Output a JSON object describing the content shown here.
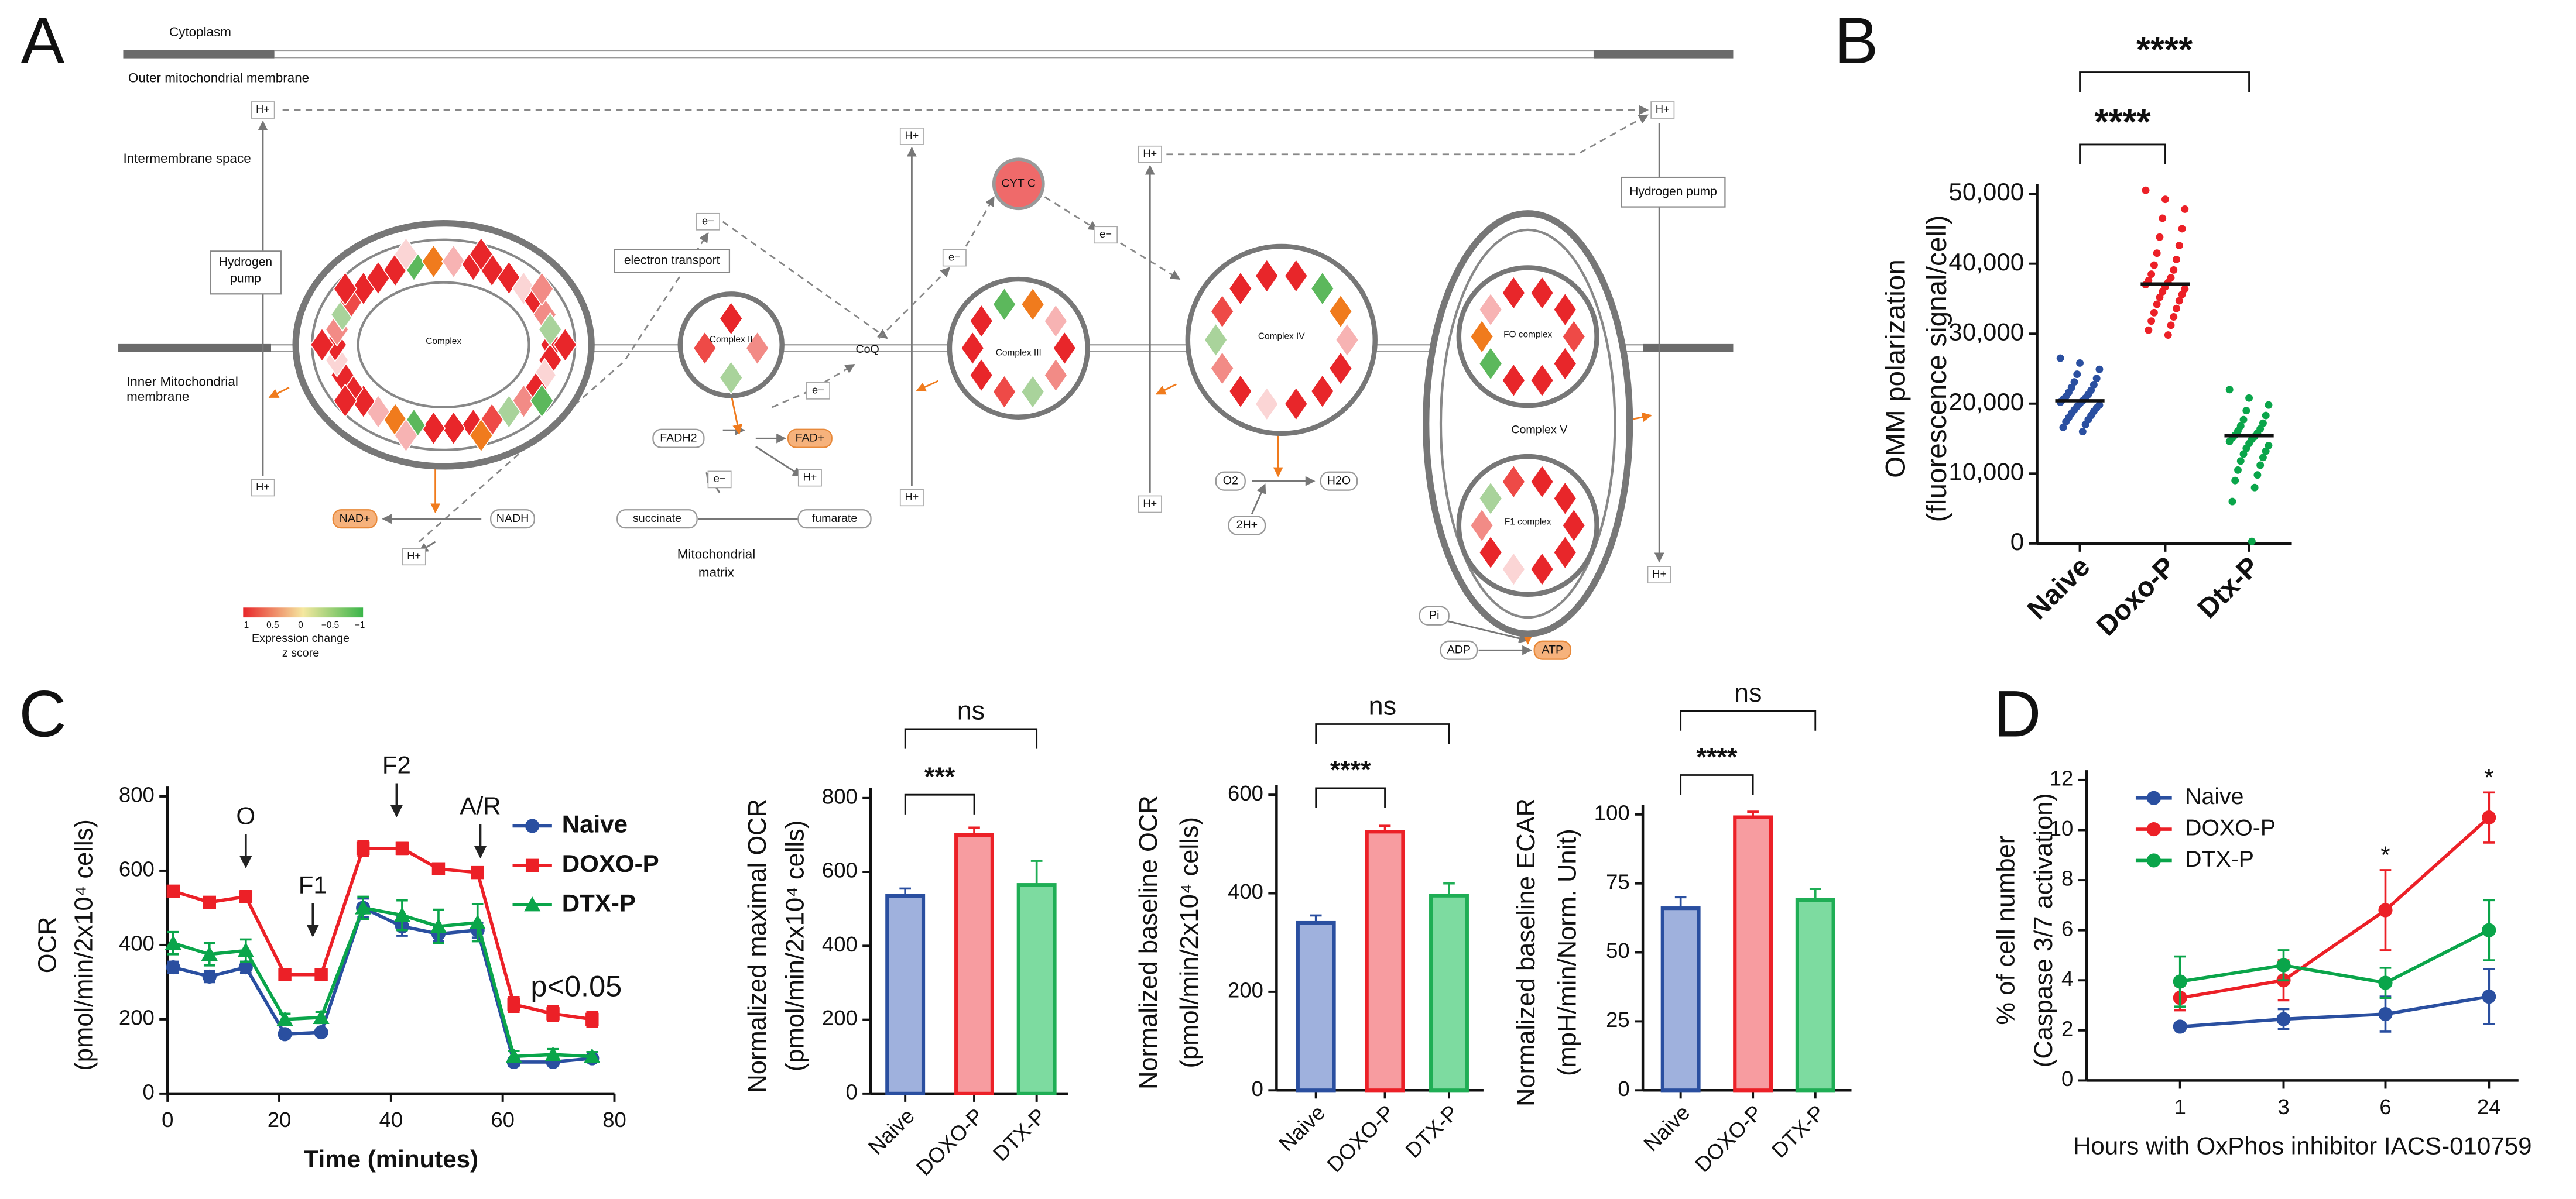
{
  "panel_labels": [
    "A",
    "B",
    "C",
    "D"
  ],
  "diagram": {
    "regions": [
      "Cytoplasm",
      "Outer mitochondrial membrane",
      "Intermembrane space",
      [
        "Inner Mitochondrial",
        "membrane"
      ],
      [
        "Mitochondrial",
        "matrix"
      ]
    ],
    "complexes": [
      "Complex",
      "Complex II",
      "Complex III",
      "Complex IV",
      "Complex V",
      "FO complex",
      "F1 complex"
    ],
    "boxes": [
      [
        "Hydrogen",
        "pump"
      ],
      [
        "electron transport"
      ],
      [
        "Hydrogen pump"
      ]
    ],
    "molecules": [
      "CoQ",
      "CYT C",
      "NAD+",
      "NADH",
      "FADH2",
      "FAD+",
      "succinate",
      "fumarate",
      "O2",
      "H2O",
      "2H+",
      "Pi",
      "ADP",
      "ATP"
    ],
    "carriers": [
      "H+",
      "H+",
      "H+",
      "H+",
      "H+",
      "H+",
      "H+",
      "H+",
      "H+",
      "H+",
      "e−",
      "e−",
      "e−",
      "e−",
      "e−"
    ],
    "legend": {
      "title": [
        "Expression change",
        "z score"
      ],
      "ticks": [
        "1",
        "0.5",
        "0",
        "−0.5",
        "−1"
      ]
    }
  },
  "chart_data": [
    {
      "type": "dotplot",
      "ylabel": [
        "OMM polarization",
        "(fluorescence signal/cell)"
      ],
      "categories": [
        "Naive",
        "Doxo-P",
        "Dtx-P"
      ],
      "groups": [
        {
          "color": "#2a4fa0",
          "mean": 20400,
          "values": [
            26500,
            25800,
            24900,
            24200,
            23600,
            23100,
            22700,
            22300,
            21900,
            21600,
            21300,
            21000,
            20800,
            20600,
            20400,
            20200,
            20000,
            19800,
            19600,
            19400,
            19100,
            18900,
            18600,
            18300,
            18000,
            17700,
            17400,
            17000,
            16600,
            16000
          ]
        },
        {
          "color": "#ec2027",
          "mean": 37100,
          "values": [
            50500,
            49200,
            47800,
            46500,
            45000,
            43800,
            42600,
            41500,
            40600,
            39800,
            39100,
            38500,
            38000,
            37600,
            37300,
            37000,
            36700,
            36400,
            36000,
            35600,
            35200,
            34700,
            34200,
            33600,
            33000,
            32400,
            31800,
            31200,
            30500,
            29800
          ]
        },
        {
          "color": "#0aa54a",
          "mean": 15400,
          "values": [
            22000,
            20800,
            19800,
            19000,
            18300,
            17700,
            17200,
            16800,
            16400,
            16100,
            15800,
            15500,
            15300,
            15100,
            14900,
            14600,
            14300,
            14000,
            13600,
            13200,
            12800,
            12300,
            11800,
            11200,
            10500,
            9800,
            9000,
            8000,
            6000,
            300
          ]
        }
      ],
      "ylim": [
        0,
        50000
      ],
      "yticks": [
        0,
        {
          "value": 10000,
          "label": "10,000"
        },
        {
          "value": 20000,
          "label": "20,000"
        },
        {
          "value": 30000,
          "label": "30,000"
        },
        {
          "value": 40000,
          "label": "40,000"
        },
        {
          "value": 50000,
          "label": "50,000"
        }
      ],
      "significance": [
        {
          "label": "****",
          "pair": [
            0,
            1
          ]
        },
        {
          "label": "****",
          "pair": [
            0,
            2
          ]
        }
      ]
    },
    {
      "type": "line",
      "ylabel": [
        "OCR",
        "(pmol/min/2x10⁴ cells)"
      ],
      "xlabel": "Time (minutes)",
      "x": [
        1,
        7.5,
        14,
        21,
        27.5,
        35,
        42,
        48.5,
        55.5,
        62,
        69,
        76
      ],
      "series": [
        {
          "name": "Naive",
          "color": "#2a4fa0",
          "marker": "circle",
          "values": [
            340,
            315,
            340,
            160,
            165,
            500,
            450,
            430,
            440,
            85,
            85,
            95
          ],
          "errors": [
            15,
            15,
            15,
            10,
            10,
            25,
            25,
            20,
            20,
            10,
            8,
            8
          ]
        },
        {
          "name": "DOXO-P",
          "color": "#ec2027",
          "marker": "square",
          "values": [
            545,
            515,
            530,
            320,
            320,
            660,
            660,
            605,
            595,
            240,
            215,
            200
          ],
          "errors": [
            12,
            12,
            15,
            12,
            12,
            20,
            15,
            12,
            12,
            20,
            20,
            20
          ]
        },
        {
          "name": "DTX-P",
          "color": "#0aa54a",
          "marker": "triangle",
          "values": [
            405,
            375,
            385,
            200,
            205,
            500,
            480,
            450,
            460,
            100,
            105,
            100
          ],
          "errors": [
            30,
            30,
            30,
            15,
            15,
            30,
            40,
            45,
            50,
            15,
            15,
            12
          ]
        }
      ],
      "xlim": [
        0,
        80
      ],
      "xticks": [
        0,
        20,
        40,
        60,
        80
      ],
      "ylim": [
        0,
        800
      ],
      "yticks": [
        0,
        200,
        400,
        600,
        800
      ],
      "annotations": [
        {
          "text": "O",
          "x": 14
        },
        {
          "text": "F1",
          "x": 26
        },
        {
          "text": "F2",
          "x": 41
        },
        {
          "text": "A/R",
          "x": 56
        }
      ],
      "note": {
        "text": "p<0.05",
        "color": "#ec2027"
      }
    },
    {
      "type": "bar",
      "ylabel": [
        "Normalized maximal OCR",
        "(pmol/min/2x10⁴ cells)"
      ],
      "categories": [
        "Naive",
        "DOXO-P",
        "DTX-P"
      ],
      "values": [
        535,
        700,
        565
      ],
      "errors": [
        20,
        20,
        65
      ],
      "colors": [
        "#9fb1dd",
        "#f79ca0",
        "#7ddba0"
      ],
      "edge_colors": [
        "#2a4fa0",
        "#ec2027",
        "#1fae55"
      ],
      "ylim": [
        0,
        800
      ],
      "yticks": [
        0,
        200,
        400,
        600,
        800
      ],
      "significance": [
        {
          "label": "***",
          "pair": [
            0,
            1
          ]
        },
        {
          "label": "ns",
          "pair": [
            0,
            2
          ]
        }
      ]
    },
    {
      "type": "bar",
      "ylabel": [
        "Normalized baseline OCR",
        "(pmol/min/2x10⁴ cells)"
      ],
      "categories": [
        "Naive",
        "DOXO-P",
        "DTX-P"
      ],
      "values": [
        340,
        525,
        395
      ],
      "errors": [
        15,
        12,
        25
      ],
      "colors": [
        "#9fb1dd",
        "#f79ca0",
        "#7ddba0"
      ],
      "edge_colors": [
        "#2a4fa0",
        "#ec2027",
        "#1fae55"
      ],
      "ylim": [
        0,
        600
      ],
      "yticks": [
        0,
        200,
        400,
        600
      ],
      "significance": [
        {
          "label": "****",
          "pair": [
            0,
            1
          ]
        },
        {
          "label": "ns",
          "pair": [
            0,
            2
          ]
        }
      ]
    },
    {
      "type": "bar",
      "ylabel": [
        "Normalized baseline ECAR",
        "(mpH/min/Norm. Unit)"
      ],
      "categories": [
        "Naive",
        "DOXO-P",
        "DTX-P"
      ],
      "values": [
        66,
        99,
        69
      ],
      "errors": [
        4,
        2,
        4
      ],
      "colors": [
        "#9fb1dd",
        "#f79ca0",
        "#7ddba0"
      ],
      "edge_colors": [
        "#2a4fa0",
        "#ec2027",
        "#1fae55"
      ],
      "ylim": [
        0,
        100
      ],
      "yticks": [
        0,
        25,
        50,
        75,
        100
      ],
      "significance": [
        {
          "label": "****",
          "pair": [
            0,
            1
          ]
        },
        {
          "label": "ns",
          "pair": [
            0,
            2
          ]
        }
      ]
    },
    {
      "type": "catline",
      "ylabel": [
        "% of cell number",
        "(Caspase 3/7 activation)"
      ],
      "xlabel": "Hours with OxPhos inhibitor IACS-010759",
      "categories": [
        "1",
        "3",
        "6",
        "24"
      ],
      "series": [
        {
          "name": "Naive",
          "color": "#2a4fa0",
          "values": [
            2.15,
            2.45,
            2.65,
            3.35
          ],
          "errors": [
            0.1,
            0.4,
            0.7,
            1.1
          ]
        },
        {
          "name": "DOXO-P",
          "color": "#ec2027",
          "values": [
            3.3,
            4.0,
            6.8,
            10.5
          ],
          "errors": [
            0.5,
            0.8,
            1.6,
            1.0
          ]
        },
        {
          "name": "DTX-P",
          "color": "#0aa54a",
          "values": [
            3.95,
            4.6,
            3.9,
            6.0
          ],
          "errors": [
            1.0,
            0.6,
            0.6,
            1.2
          ]
        }
      ],
      "ylim": [
        0,
        12
      ],
      "yticks": [
        0,
        2,
        4,
        6,
        8,
        10,
        12
      ],
      "marks": [
        {
          "series": 1,
          "index": 2,
          "label": "*"
        },
        {
          "series": 1,
          "index": 3,
          "label": "*"
        }
      ]
    }
  ]
}
